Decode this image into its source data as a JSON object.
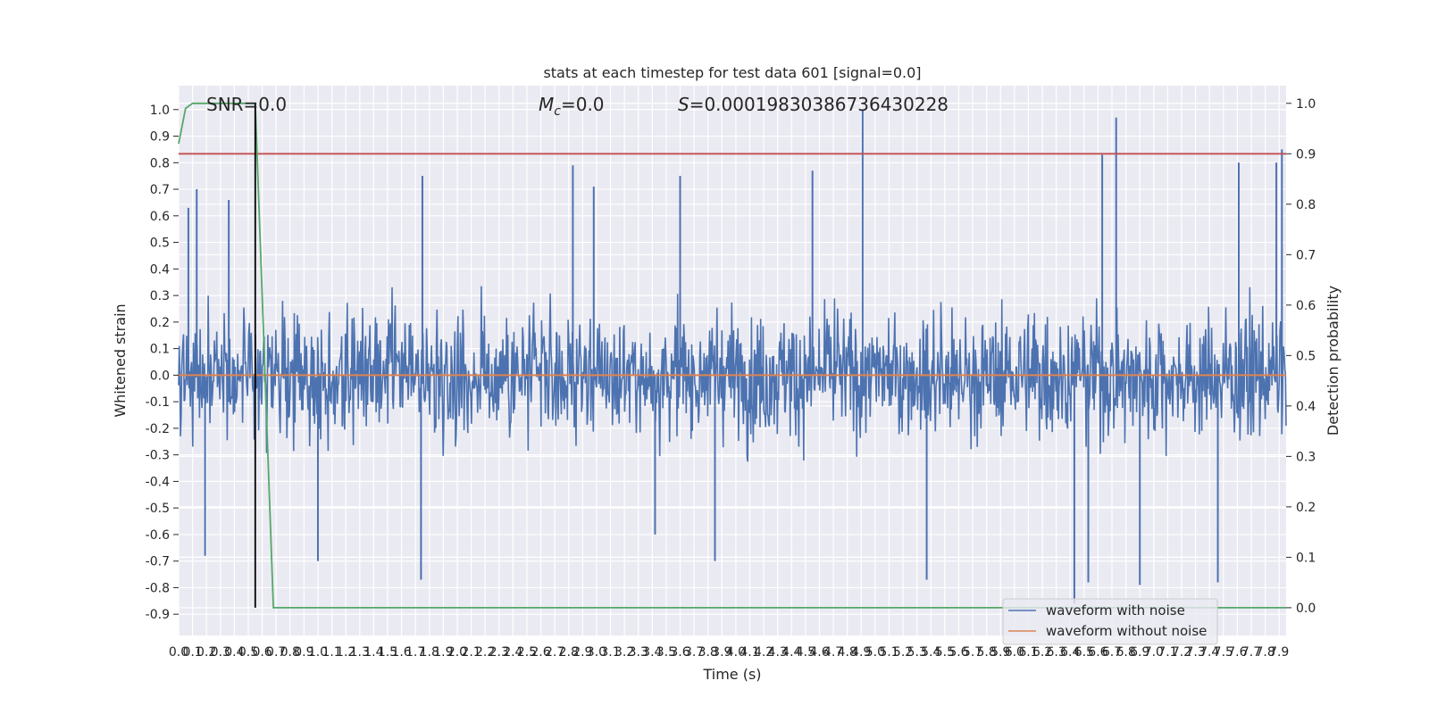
{
  "chart_data": {
    "type": "line",
    "title": "stats at each timestep for test data 601 [signal=0.0]",
    "xlabel": "Time (s)",
    "ylabel": "Whitened strain",
    "ylabel_right": "Detection probability",
    "xlim": [
      0.0,
      7.95
    ],
    "ylim": [
      -0.98,
      1.09
    ],
    "ylim_right": [
      -0.055,
      1.035
    ],
    "x_ticks": [
      0.0,
      0.1,
      0.2,
      0.3,
      0.4,
      0.5,
      0.6,
      0.7,
      0.8,
      0.9,
      1.0,
      1.1,
      1.2,
      1.3,
      1.4,
      1.5,
      1.6,
      1.7,
      1.8,
      1.9,
      2.0,
      2.1,
      2.2,
      2.3,
      2.4,
      2.5,
      2.6,
      2.7,
      2.8,
      2.9,
      3.0,
      3.1,
      3.2,
      3.3,
      3.4,
      3.5,
      3.6,
      3.7,
      3.8,
      3.9,
      4.0,
      4.1,
      4.2,
      4.3,
      4.4,
      4.5,
      4.6,
      4.7,
      4.8,
      4.9,
      5.0,
      5.1,
      5.2,
      5.3,
      5.4,
      5.5,
      5.6,
      5.7,
      5.8,
      5.9,
      6.0,
      6.1,
      6.2,
      6.3,
      6.4,
      6.5,
      6.6,
      6.7,
      6.8,
      6.9,
      7.0,
      7.1,
      7.2,
      7.3,
      7.4,
      7.5,
      7.6,
      7.7,
      7.8,
      7.9
    ],
    "y_ticks": [
      1.0,
      0.9,
      0.8,
      0.7,
      0.6,
      0.5,
      0.4,
      0.3,
      0.2,
      0.1,
      0.0,
      -0.1,
      -0.2,
      -0.3,
      -0.4,
      -0.5,
      -0.6,
      -0.7,
      -0.8,
      -0.9
    ],
    "y_ticks_right": [
      1.0,
      0.9,
      0.8,
      0.7,
      0.6,
      0.5,
      0.4,
      0.3,
      0.2,
      0.1,
      0.0
    ],
    "grid": true,
    "legend_position": "lower-right",
    "annotations": {
      "snr": "SNR=0.0",
      "mc_symbol": "M",
      "mc_sub": "c",
      "mc_value": "=0.0",
      "s_symbol": "S",
      "s_value": "=0.00019830386736430228"
    },
    "series": [
      {
        "name": "waveform with noise",
        "color": "#4c72b0",
        "axis": "left",
        "description_values": "dense noise, approx range -0.9 to 1.0",
        "spikes": [
          [
            0.07,
            0.63
          ],
          [
            0.13,
            0.7
          ],
          [
            0.19,
            -0.68
          ],
          [
            0.36,
            0.66
          ],
          [
            1.0,
            -0.7
          ],
          [
            1.75,
            0.75
          ],
          [
            1.74,
            -0.77
          ],
          [
            2.83,
            0.79
          ],
          [
            2.98,
            0.71
          ],
          [
            3.42,
            -0.6
          ],
          [
            3.6,
            0.75
          ],
          [
            3.85,
            -0.7
          ],
          [
            4.55,
            0.77
          ],
          [
            4.91,
            1.0
          ],
          [
            5.37,
            -0.77
          ],
          [
            6.63,
            0.83
          ],
          [
            6.73,
            0.97
          ],
          [
            6.43,
            -0.86
          ],
          [
            6.53,
            -0.78
          ],
          [
            6.9,
            -0.79
          ],
          [
            7.61,
            0.8
          ],
          [
            7.92,
            0.85
          ],
          [
            7.46,
            -0.78
          ],
          [
            7.88,
            0.8
          ]
        ]
      },
      {
        "name": "waveform without noise",
        "color": "#dd8452",
        "axis": "left",
        "y": 0.0
      },
      {
        "name": "detection probability",
        "color": "#55a868",
        "axis": "right",
        "x": [
          0.0,
          0.05,
          0.1,
          0.55,
          0.68,
          7.95
        ],
        "y": [
          0.92,
          0.99,
          1.0,
          1.0,
          0.0,
          0.0
        ]
      }
    ],
    "threshold": {
      "color": "#c44e52",
      "axis": "right",
      "value": 0.9
    },
    "marker_line": {
      "color": "#000000",
      "x": 0.55
    }
  }
}
